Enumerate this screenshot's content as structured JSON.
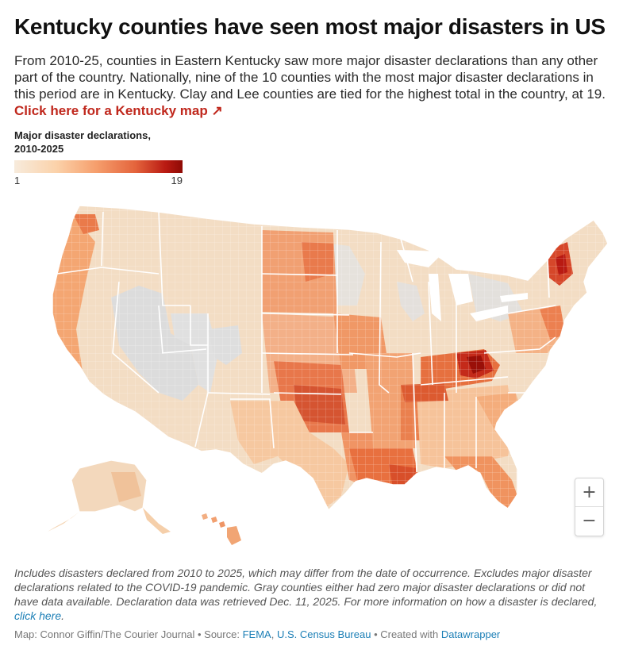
{
  "header": {
    "title": "Kentucky counties have seen most major disasters in US",
    "subtitle": "From 2010-25, counties in Eastern Kentucky saw more major disaster declarations than any other part of the country. Nationally, nine of the 10 counties with the most major disaster declarations in this period are in Kentucky. Clay and Lee counties are tied for the highest total in the country, at 19.",
    "ky_link": "Click here for a Kentucky map ↗"
  },
  "legend": {
    "title_line1": "Major disaster declarations,",
    "title_line2": "2010-2025",
    "min_label": "1",
    "max_label": "19",
    "min_value": 1,
    "max_value": 19,
    "color_stops": [
      "#f7ebdc",
      "#fbd2aa",
      "#f6a06e",
      "#e4643c",
      "#b91a12",
      "#8e0a05"
    ],
    "no_data_color": "#dcdcdc"
  },
  "map": {
    "type": "choropleth",
    "region": "United States counties",
    "measure": "Major disaster declarations, 2010-2025",
    "highest_counties": [
      "Clay",
      "Lee"
    ],
    "highest_value": 19
  },
  "zoom": {
    "in_label": "+",
    "out_label": "−"
  },
  "notes": {
    "text": "Includes disasters declared from 2010 to 2025, which may differ from the date of occurrence. Excludes major disaster declarations related to the COVID-19 pandemic. Gray counties either had zero major disaster declarations or did not have data available. Declaration data was retrieved Dec. 11, 2025. For more information on how a disaster is declared, ",
    "link": "click here",
    "end": "."
  },
  "footer": {
    "map_credit": "Map: Connor Giffin/The Courier Journal",
    "sep1": " • Source: ",
    "source1": "FEMA",
    "comma": ", ",
    "source2": "U.S. Census Bureau",
    "sep2": " • Created with ",
    "tool": "Datawrapper"
  }
}
